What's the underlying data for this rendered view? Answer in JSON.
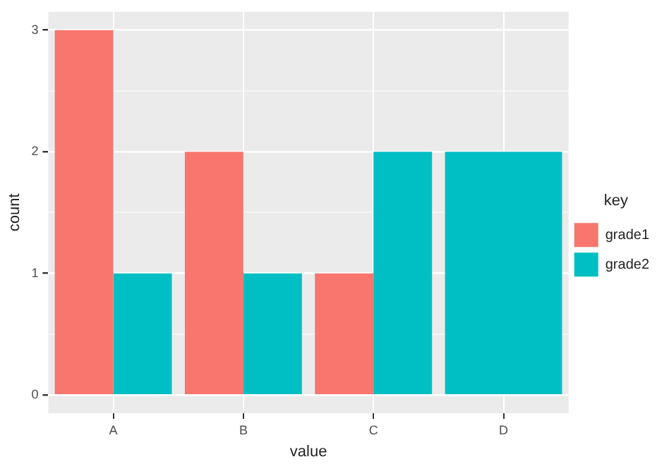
{
  "chart_data": {
    "type": "bar",
    "xlabel": "value",
    "ylabel": "count",
    "legend_title": "key",
    "categories": [
      "A",
      "B",
      "C",
      "D"
    ],
    "series": [
      {
        "name": "grade1",
        "color": "#f8766d",
        "values": [
          3,
          2,
          1,
          null
        ]
      },
      {
        "name": "grade2",
        "color": "#00bfc4",
        "values": [
          1,
          1,
          2,
          2
        ]
      }
    ],
    "ylim": [
      -0.15,
      3.15
    ],
    "yticks": [
      0,
      {
        "value": 0.5,
        "label": null
      },
      1,
      {
        "value": 1.5,
        "label": null
      },
      2,
      {
        "value": 2.5,
        "label": null
      },
      3
    ],
    "grid": true,
    "legend": "right"
  }
}
